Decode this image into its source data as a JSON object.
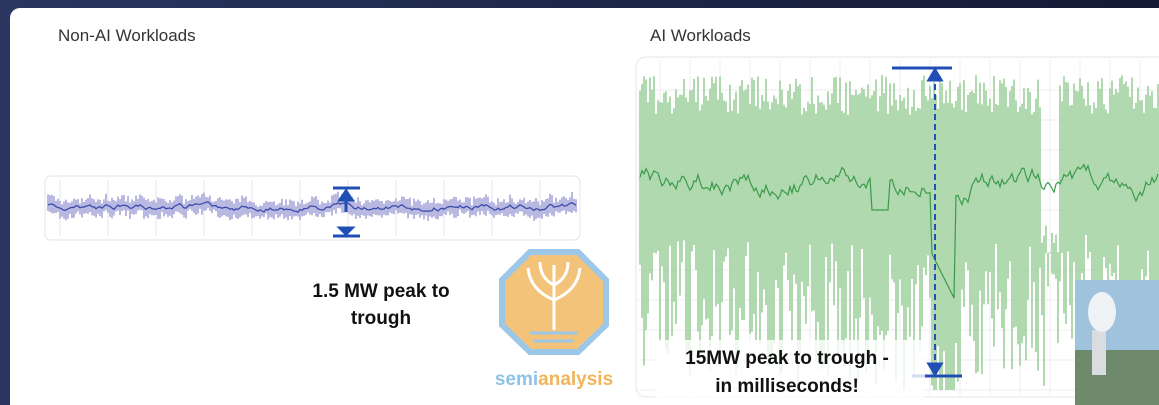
{
  "slide": {
    "left_panel": {
      "title": "Non-AI Workloads",
      "annotation": [
        "1.5 MW peak to",
        "trough"
      ]
    },
    "right_panel": {
      "title": "AI Workloads",
      "annotation": [
        "15MW peak to trough -",
        "in milliseconds!"
      ]
    },
    "logo": {
      "text_a": "semi",
      "text_b": "analysis"
    }
  }
}
